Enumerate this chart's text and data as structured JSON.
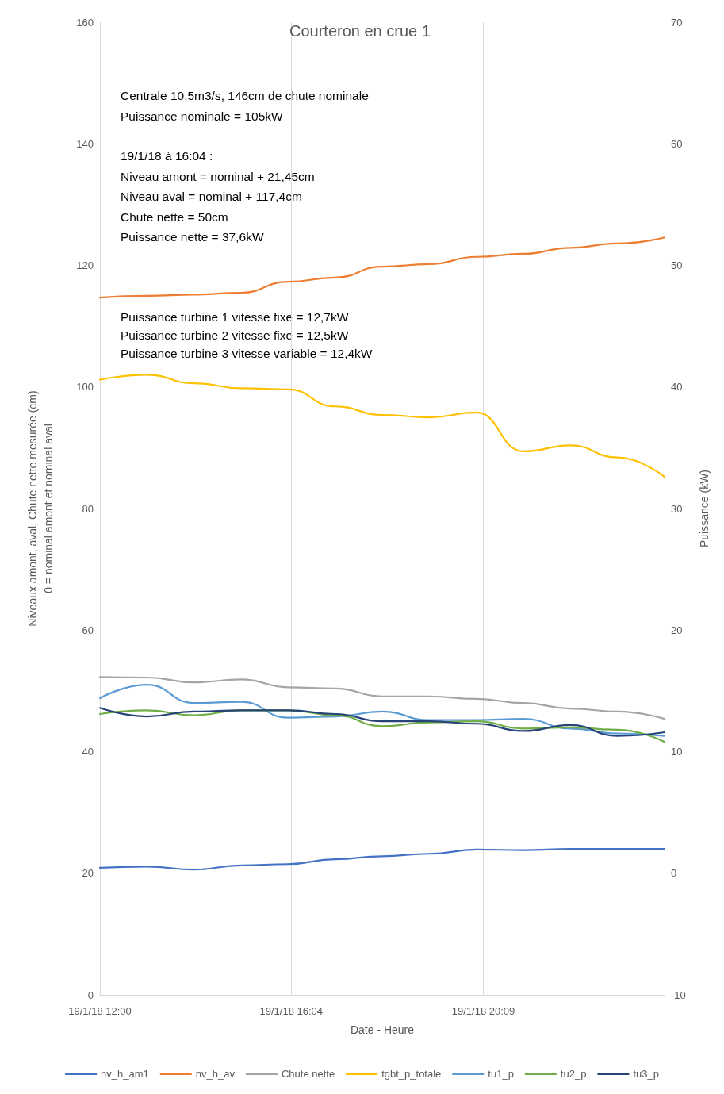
{
  "chart_data": {
    "type": "line",
    "title": "Courteron en crue 1",
    "xlabel": "Date - Heure",
    "ylabel": "Niveaux amont, aval, Chute nette mesurée (cm)\n0 = nominal amont et nominal aval",
    "y2label": "Puissance (kW)",
    "annotations": [
      "Centrale 10,5m3/s, 146cm de chute nominale\nPuissance nominale = 105kW",
      "19/1/18 à 16:04 :\nNiveau amont = nominal + 21,45cm\nNiveau aval = nominal + 117,4cm\nChute nette = 50cm\nPuissance nette = 37,6kW",
      "Puissance turbine 1 vitesse fixe = 12,7kW\nPuissance turbine 2 vitesse fixe = 12,5kW\nPuissance turbine 3 vitesse variable = 12,4kW"
    ],
    "x": [
      "--01-19T12:00",
      "--01-19T13:00",
      "--01-19T14:00",
      "--01-19T15:00",
      "--01-19T16:00",
      "--01-19T17:00",
      "--01-19T18:00",
      "--01-19T19:00",
      "--01-19T20:00",
      "--01-19T21:00",
      "--01-19T22:00",
      "--01-19T23:00",
      "--01-20T00:00"
    ],
    "xlim": [
      "--01-19T12:00",
      "--01-20T00:00"
    ],
    "xticks": [
      {
        "value": "--01-19T12:00",
        "label": "19/1/18 12:00"
      },
      {
        "value": "--01-19T16:04",
        "label": "19/1/18 16:04"
      },
      {
        "value": "--01-19T20:09",
        "label": "19/1/18 20:09"
      }
    ],
    "ylim": [
      0,
      160
    ],
    "yticks": [
      0,
      20,
      40,
      60,
      80,
      100,
      120,
      140,
      160
    ],
    "y2lim": [
      -10,
      70
    ],
    "y2ticks": [
      -10,
      0,
      10,
      20,
      30,
      40,
      50,
      60,
      70
    ],
    "grid": "x",
    "legend": "bottom",
    "marker": "none",
    "line_style": "solid",
    "series": [
      {
        "name": "nv_h_am1",
        "color": "#4472c4",
        "values": [
          20.9,
          21.1,
          20.6,
          21.3,
          21.5,
          22.3,
          22.8,
          23.2,
          23.9,
          23.8,
          24.0,
          24.0,
          24.0
        ]
      },
      {
        "name": "nv_h_av",
        "color": "#ed7d31",
        "values": [
          114.7,
          115.0,
          115.2,
          115.5,
          117.3,
          118.0,
          119.8,
          120.2,
          121.4,
          121.9,
          122.9,
          123.6,
          124.6
        ]
      },
      {
        "name": "Chute nette",
        "color": "#a5a5a5",
        "values": [
          52.3,
          52.2,
          51.4,
          51.9,
          50.6,
          50.4,
          49.1,
          49.1,
          48.7,
          48.0,
          47.1,
          46.6,
          45.4
        ]
      },
      {
        "name": "tgbt_p_totale",
        "color": "#ffc000",
        "axis": "y2",
        "values": [
          40.6,
          41.0,
          40.3,
          39.9,
          39.8,
          38.4,
          37.7,
          37.5,
          37.9,
          34.7,
          35.2,
          34.2,
          32.6
        ]
      },
      {
        "name": "tu1_p",
        "color": "#5b9bd5",
        "axis": "y2",
        "values": [
          14.4,
          15.5,
          14.0,
          14.1,
          12.8,
          12.9,
          13.3,
          12.6,
          12.6,
          12.7,
          11.9,
          11.5,
          11.3
        ]
      },
      {
        "name": "tu2_p",
        "color": "#70ad47",
        "axis": "y2",
        "values": [
          13.1,
          13.4,
          13.0,
          13.4,
          13.4,
          13.0,
          12.1,
          12.4,
          12.5,
          11.9,
          12.0,
          11.8,
          10.8
        ]
      },
      {
        "name": "tu3_p",
        "color": "#264478",
        "axis": "y2",
        "values": [
          13.6,
          12.9,
          13.3,
          13.4,
          13.4,
          13.1,
          12.5,
          12.5,
          12.3,
          11.7,
          12.2,
          11.3,
          11.6
        ]
      }
    ]
  }
}
